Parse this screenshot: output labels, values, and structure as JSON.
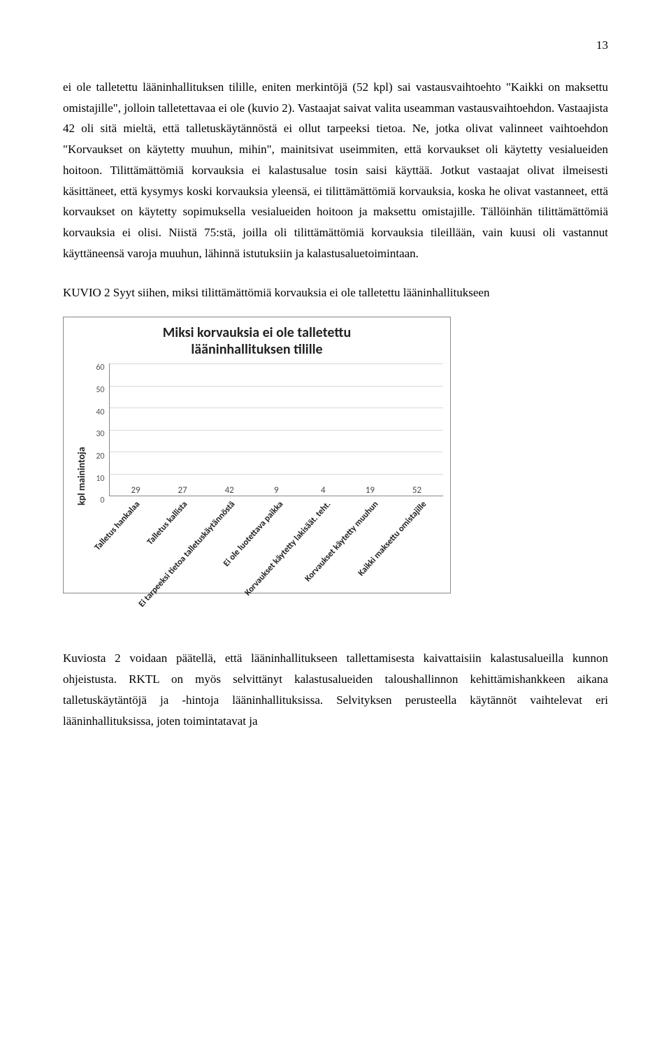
{
  "page_number": "13",
  "paragraphs": {
    "p1": "ei ole talletettu lääninhallituksen tilille, eniten merkintöjä (52 kpl) sai vastausvaihtoehto \"Kaikki on maksettu omistajille\", jolloin talletettavaa ei ole (kuvio 2). Vastaajat saivat valita useamman vastausvaihtoehdon. Vastaajista 42 oli sitä mieltä, että talletuskäytännöstä ei ollut tarpeeksi tietoa. Ne, jotka olivat valinneet vaihtoehdon \"Korvaukset on käytetty muuhun, mihin\", mainitsivat useimmiten, että korvaukset oli käytetty vesialueiden hoitoon. Tilittämättömiä korvauksia ei kalastusalue tosin saisi käyttää. Jotkut vastaajat olivat ilmeisesti käsittäneet, että kysymys koski korvauksia yleensä, ei tilittämättömiä korvauksia, koska he olivat vastanneet, että korvaukset on käytetty sopimuksella vesialueiden hoitoon ja maksettu omistajille. Tällöinhän tilittämättömiä korvauksia ei olisi. Niistä 75:stä, joilla oli tilittämättömiä korvauksia tileillään, vain kuusi oli vastannut käyttäneensä varoja muuhun, lähinnä istutuksiin ja kalastusaluetoimintaan.",
    "caption": "KUVIO 2 Syyt siihen, miksi tilittämättömiä korvauksia ei ole talletettu lääninhallitukseen",
    "p2": "Kuviosta 2 voidaan päätellä, että lääninhallitukseen tallettamisesta kaivattaisiin kalastusalueilla kunnon ohjeistusta. RKTL on myös selvittänyt kalastusalueiden taloushallinnon kehittämishankkeen aikana talletuskäytäntöjä ja -hintoja lääninhallituksissa. Selvityksen perusteella käytännöt vaihtelevat eri lääninhallituksissa, joten toimintatavat ja"
  },
  "chart": {
    "title_line1": "Miksi korvauksia ei ole talletettu",
    "title_line2": "lääninhallituksen tilille",
    "y_label": "kpl mainintoja",
    "y_max": 60,
    "y_ticks": [
      "0",
      "10",
      "20",
      "30",
      "40",
      "50",
      "60"
    ],
    "bar_color": "#8b73ab",
    "grid_color": "#d8d8d8",
    "categories": [
      "Talletus hankalaa",
      "Talletus kallista",
      "Ei tarpeeksi tietoa talletuskäytännöstä",
      "Ei ole luotettava paikka",
      "Korvaukset käytetty lakisäät. teht.",
      "Korvaukset käytetty muuhun",
      "Kaikki maksettu omistajille"
    ],
    "values": [
      29,
      27,
      42,
      9,
      4,
      19,
      52
    ]
  }
}
